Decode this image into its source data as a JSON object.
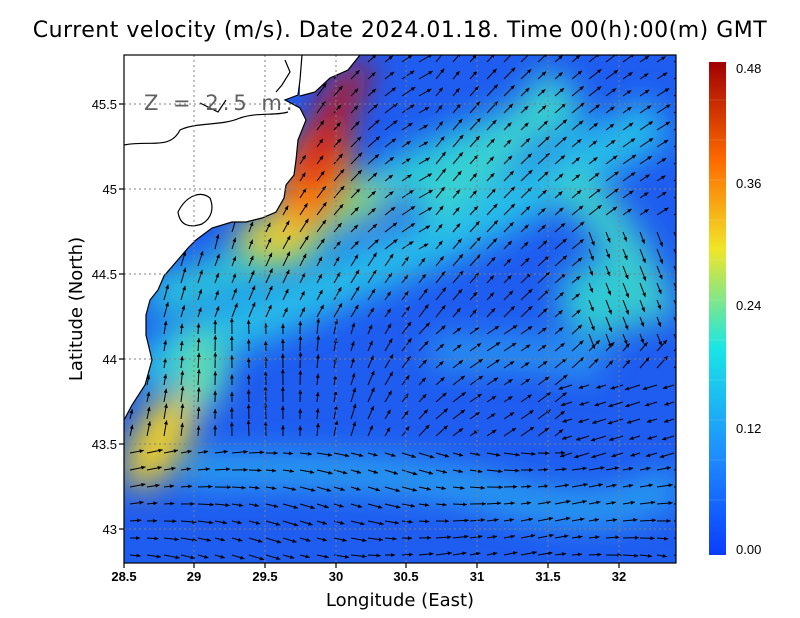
{
  "title": "Current velocity (m/s). Date 2024.01.18. Time 00(h):00(m) GMT",
  "depth_label": "Z = 2.5 m.",
  "xlabel": "Longitude (East)",
  "ylabel": "Latitude (North)",
  "x_ticks": [
    "28.5",
    "29",
    "29.5",
    "30",
    "30.5",
    "31",
    "31.5",
    "32"
  ],
  "y_ticks": [
    "43",
    "43.5",
    "44",
    "44.5",
    "45",
    "45.5"
  ],
  "colorbar": {
    "ticks": [
      "0.00",
      "0.12",
      "0.24",
      "0.36",
      "0.48"
    ],
    "colors": [
      "#0a3cff",
      "#1e8cff",
      "#19e6e6",
      "#f0e628",
      "#ff6a00",
      "#a00000"
    ]
  },
  "chart_data": {
    "type": "heatmap",
    "title": "Current velocity (m/s). Date 2024.01.18. Time 00(h):00(m) GMT",
    "xlabel": "Longitude (East)",
    "ylabel": "Latitude (North)",
    "xlim": [
      28.5,
      32.4
    ],
    "ylim": [
      42.8,
      45.8
    ],
    "value_range": [
      0.0,
      0.48
    ],
    "grid": true,
    "hotspots": [
      {
        "lon": 29.85,
        "lat": 45.1,
        "speed": 0.47
      },
      {
        "lon": 30.0,
        "lat": 45.55,
        "speed": 0.45
      },
      {
        "lon": 28.65,
        "lat": 43.6,
        "speed": 0.33
      },
      {
        "lon": 29.55,
        "lat": 44.75,
        "speed": 0.32
      },
      {
        "lon": 31.9,
        "lat": 44.55,
        "speed": 0.2
      }
    ]
  }
}
